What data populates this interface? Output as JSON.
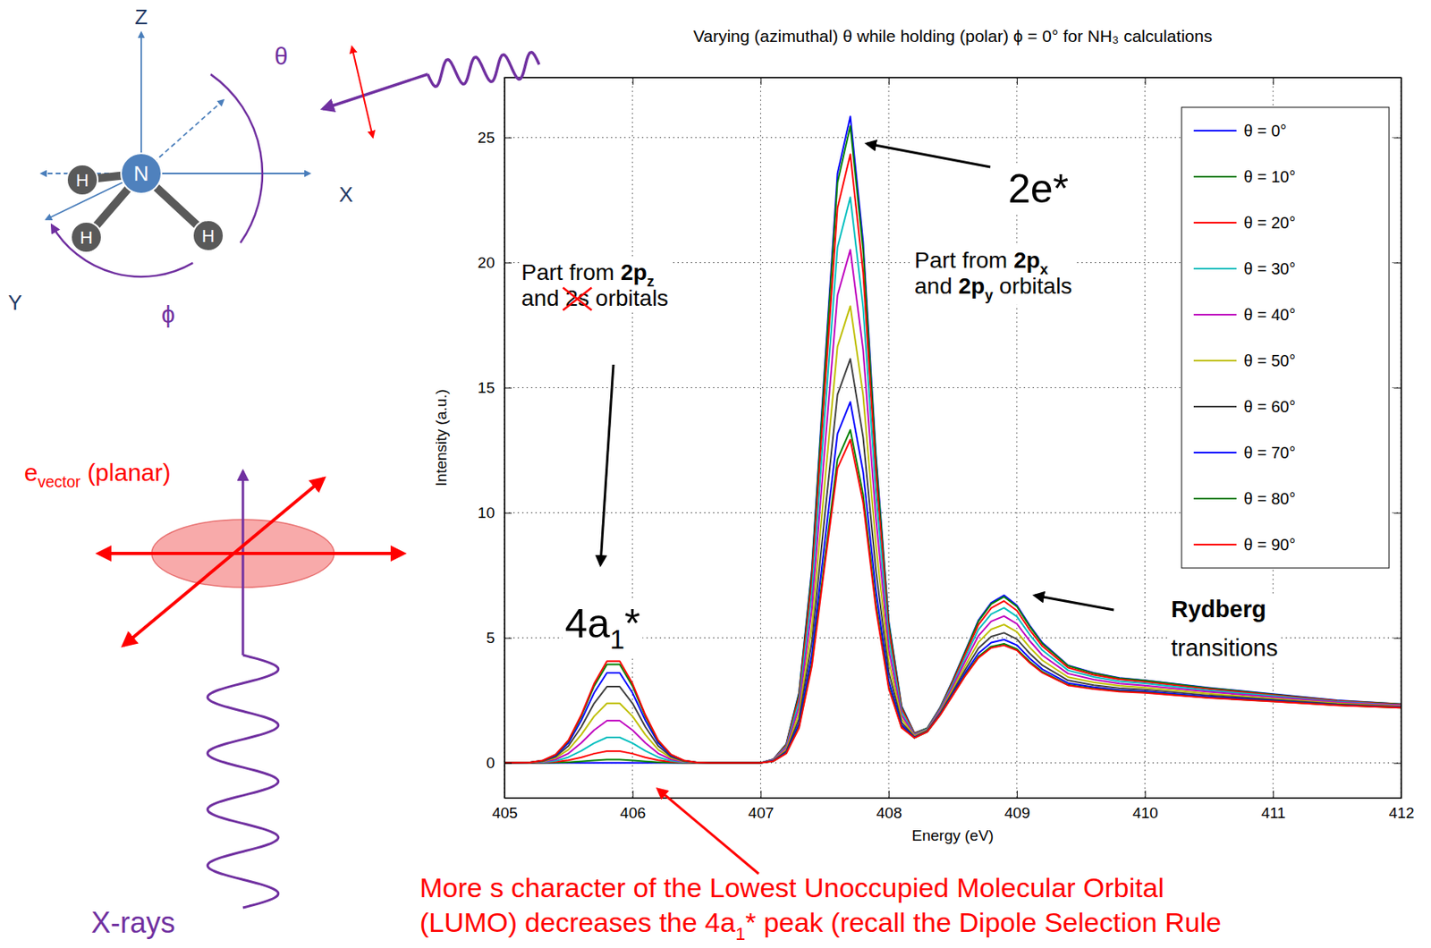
{
  "chart_data": {
    "type": "line",
    "title": "Varying (azimuthal) θ while holding (polar) ϕ = 0° for NH₃ calculations",
    "x_label": "Energy (eV)",
    "y_label": "Intensity (a.u.)",
    "xlim": [
      405,
      412
    ],
    "ylim": [
      -1.4,
      27.4
    ],
    "xticks": [
      405,
      406,
      407,
      408,
      409,
      410,
      411,
      412
    ],
    "yticks": [
      0,
      5,
      10,
      15,
      20,
      25
    ],
    "grid": true,
    "legend": "northeast",
    "x": [
      405,
      405.2,
      405.3,
      405.4,
      405.5,
      405.6,
      405.7,
      405.8,
      405.9,
      406,
      406.1,
      406.2,
      406.3,
      406.4,
      406.5,
      406.6,
      406.8,
      407,
      407.1,
      407.2,
      407.3,
      407.4,
      407.5,
      407.6,
      407.7,
      407.8,
      407.9,
      408,
      408.1,
      408.2,
      408.3,
      408.4,
      408.5,
      408.6,
      408.7,
      408.8,
      408.9,
      409,
      409.1,
      409.2,
      409.4,
      409.6,
      409.8,
      410,
      410.5,
      411,
      411.5,
      412
    ],
    "series": [
      {
        "name": "θ = 0°",
        "color": "#0000ff",
        "values": [
          0,
          0,
          0,
          0,
          0,
          0,
          0,
          0,
          0,
          0,
          0,
          0,
          0,
          0,
          0,
          0,
          0,
          0,
          0.15,
          0.75,
          2.81,
          7.75,
          15.78,
          23.56,
          25.84,
          20.83,
          12.32,
          5.66,
          2.27,
          1.19,
          1.38,
          2.2,
          3.3,
          4.5,
          5.7,
          6.4,
          6.7,
          6.3,
          5.5,
          4.8,
          3.9,
          3.6,
          3.4,
          3.3,
          3,
          2.75,
          2.5,
          2.35
        ]
      },
      {
        "name": "θ = 10°",
        "color": "#008000",
        "values": [
          0,
          0,
          0,
          0.01,
          0.03,
          0.06,
          0.1,
          0.13,
          0.13,
          0.1,
          0.06,
          0.03,
          0.01,
          0,
          0,
          0,
          0,
          0,
          0.14,
          0.74,
          2.77,
          7.63,
          15.55,
          23.2,
          25.46,
          20.51,
          12.14,
          5.58,
          2.24,
          1.18,
          1.38,
          2.19,
          3.28,
          4.47,
          5.66,
          6.35,
          6.64,
          6.25,
          5.46,
          4.76,
          3.88,
          3.58,
          3.38,
          3.29,
          2.99,
          2.74,
          2.49,
          2.35
        ]
      },
      {
        "name": "θ = 20°",
        "color": "#ff0000",
        "values": [
          0,
          0,
          0.01,
          0.04,
          0.11,
          0.22,
          0.37,
          0.47,
          0.47,
          0.37,
          0.22,
          0.11,
          0.04,
          0.01,
          0,
          0,
          0,
          0,
          0.14,
          0.71,
          2.64,
          7.3,
          14.86,
          22.18,
          24.33,
          19.61,
          11.6,
          5.34,
          2.17,
          1.17,
          1.36,
          2.16,
          3.23,
          4.38,
          5.52,
          6.19,
          6.47,
          6.09,
          5.32,
          4.66,
          3.81,
          3.52,
          3.34,
          3.24,
          2.95,
          2.71,
          2.48,
          2.33
        ]
      },
      {
        "name": "θ = 30°",
        "color": "#00bfbf",
        "values": [
          0,
          0.01,
          0.02,
          0.08,
          0.23,
          0.48,
          0.79,
          1.02,
          1.02,
          0.79,
          0.48,
          0.23,
          0.08,
          0.02,
          0.01,
          0,
          0,
          0,
          0.13,
          0.66,
          2.46,
          6.78,
          13.81,
          20.61,
          22.61,
          18.22,
          10.78,
          4.99,
          2.05,
          1.14,
          1.35,
          2.13,
          3.15,
          4.25,
          5.33,
          5.95,
          6.2,
          5.85,
          5.13,
          4.5,
          3.7,
          3.44,
          3.26,
          3.18,
          2.9,
          2.68,
          2.45,
          2.31
        ]
      },
      {
        "name": "θ = 40°",
        "color": "#bf00bf",
        "values": [
          0,
          0.01,
          0.04,
          0.14,
          0.38,
          0.8,
          1.31,
          1.69,
          1.69,
          1.31,
          0.8,
          0.38,
          0.14,
          0.04,
          0.01,
          0,
          0,
          0,
          0.12,
          0.6,
          2.23,
          6.15,
          12.52,
          18.69,
          20.51,
          16.52,
          9.78,
          4.55,
          1.91,
          1.11,
          1.32,
          2.08,
          3.05,
          4.09,
          5.08,
          5.66,
          5.87,
          5.56,
          4.88,
          4.3,
          3.57,
          3.33,
          3.17,
          3.09,
          2.84,
          2.63,
          2.42,
          2.29
        ]
      },
      {
        "name": "θ = 50°",
        "color": "#bfbf00",
        "values": [
          0,
          0.01,
          0.06,
          0.2,
          0.53,
          1.13,
          1.86,
          2.38,
          2.38,
          1.86,
          1.13,
          0.53,
          0.2,
          0.06,
          0.01,
          0,
          0,
          0,
          0.1,
          0.53,
          1.98,
          5.47,
          11.15,
          16.64,
          18.26,
          14.71,
          8.71,
          4.08,
          1.76,
          1.08,
          1.3,
          2.02,
          2.95,
          3.91,
          4.82,
          5.34,
          5.53,
          5.24,
          4.62,
          4.1,
          3.43,
          3.22,
          3.08,
          3.01,
          2.77,
          2.57,
          2.38,
          2.26
        ]
      },
      {
        "name": "θ = 60°",
        "color": "#404040",
        "values": [
          0,
          0.02,
          0.07,
          0.25,
          0.68,
          1.44,
          2.38,
          3.05,
          3.05,
          2.38,
          1.44,
          0.68,
          0.25,
          0.07,
          0.02,
          0,
          0,
          0,
          0.09,
          0.47,
          1.76,
          4.84,
          9.86,
          14.72,
          16.15,
          13.02,
          7.7,
          3.65,
          1.62,
          1.04,
          1.28,
          1.98,
          2.85,
          3.75,
          4.58,
          5.05,
          5.2,
          4.95,
          4.38,
          3.9,
          3.3,
          3.11,
          2.99,
          2.93,
          2.7,
          2.53,
          2.35,
          2.24
        ]
      },
      {
        "name": "θ = 70°",
        "color": "#0000ff",
        "values": [
          0,
          0.02,
          0.09,
          0.3,
          0.8,
          1.7,
          2.8,
          3.6,
          3.6,
          2.8,
          1.7,
          0.8,
          0.3,
          0.09,
          0.02,
          0,
          0,
          0,
          0.08,
          0.42,
          1.57,
          4.33,
          8.81,
          13.16,
          14.43,
          11.63,
          6.88,
          3.29,
          1.51,
          1.02,
          1.25,
          1.94,
          2.77,
          3.62,
          4.38,
          4.81,
          4.93,
          4.71,
          4.18,
          3.74,
          3.19,
          3.03,
          2.91,
          2.86,
          2.65,
          2.49,
          2.32,
          2.22
        ]
      },
      {
        "name": "θ = 80°",
        "color": "#008000",
        "values": [
          0,
          0.02,
          0.09,
          0.33,
          0.88,
          1.86,
          3.07,
          3.94,
          3.94,
          3.07,
          1.86,
          0.88,
          0.33,
          0.09,
          0.02,
          0,
          0,
          0,
          0.07,
          0.39,
          1.45,
          3.99,
          8.13,
          12.13,
          13.31,
          10.73,
          6.35,
          3.06,
          1.43,
          1,
          1.24,
          1.91,
          2.72,
          3.53,
          4.25,
          4.65,
          4.76,
          4.55,
          4.05,
          3.64,
          3.12,
          2.97,
          2.87,
          2.82,
          2.61,
          2.46,
          2.31,
          2.2
        ]
      },
      {
        "name": "θ = 90°",
        "color": "#ff0000",
        "values": [
          0,
          0.02,
          0.1,
          0.34,
          0.91,
          1.92,
          3.17,
          4.07,
          4.07,
          3.17,
          1.92,
          0.91,
          0.34,
          0.1,
          0.02,
          0,
          0,
          0,
          0.07,
          0.38,
          1.4,
          3.87,
          7.89,
          11.78,
          12.92,
          10.41,
          6.16,
          2.98,
          1.41,
          1,
          1.24,
          1.9,
          2.7,
          3.5,
          4.2,
          4.6,
          4.7,
          4.5,
          4,
          3.6,
          3.1,
          2.95,
          2.85,
          2.8,
          2.6,
          2.45,
          2.3,
          2.2
        ]
      }
    ],
    "annotations": [
      {
        "lines": [
          [
            {
              "text": "2e*"
            }
          ]
        ]
      },
      {
        "lines": [
          [
            {
              "text": "Part from "
            },
            {
              "text": "2p",
              "bold": true
            },
            {
              "text": "x",
              "bold": true,
              "sub": true
            }
          ],
          [
            {
              "text": "and "
            },
            {
              "text": "2p",
              "bold": true
            },
            {
              "text": "y",
              "bold": true,
              "sub": true
            },
            {
              "text": " orbitals"
            }
          ]
        ]
      },
      {
        "lines": [
          [
            {
              "text": "Part from "
            },
            {
              "text": "2p",
              "bold": true
            },
            {
              "text": "z",
              "bold": true,
              "sub": true
            }
          ],
          [
            {
              "text": "and "
            },
            {
              "text": "2s",
              "struck": true
            },
            {
              "text": " orbitals"
            }
          ]
        ]
      },
      {
        "lines": [
          [
            {
              "text": "4a"
            },
            {
              "text": "1",
              "sub": true
            },
            {
              "text": "*"
            }
          ]
        ]
      },
      {
        "lines": [
          [
            {
              "text": "Rydberg",
              "bold": true
            }
          ],
          [
            {
              "text": "transitions"
            }
          ]
        ]
      },
      {
        "lines": [
          [
            {
              "text": "More s character of the Lowest Unoccupied Molecular Orbital"
            }
          ],
          [
            {
              "text": "(LUMO) decreases the 4a"
            },
            {
              "text": "1",
              "sub": true
            },
            {
              "text": "* peak (recall the Dipole Selection Rule"
            }
          ]
        ]
      }
    ]
  },
  "diagram": {
    "axis_labels": [
      "Z",
      "X",
      "Y"
    ],
    "angle_labels": [
      "θ",
      "ϕ"
    ],
    "atoms": [
      "N",
      "H",
      "H",
      "H"
    ],
    "polarization_label": {
      "lines": [
        [
          {
            "text": "e"
          },
          {
            "text": "vector",
            "sub": true
          },
          {
            "text": " (planar)"
          }
        ]
      ]
    },
    "beam_label": "X-rays"
  }
}
